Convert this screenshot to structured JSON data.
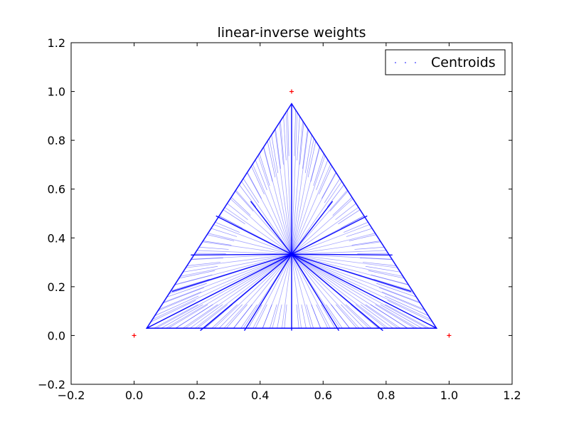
{
  "chart_data": {
    "type": "scatter",
    "title": "linear-inverse weights",
    "xlabel": "",
    "ylabel": "",
    "xlim": [
      -0.2,
      1.2
    ],
    "ylim": [
      -0.2,
      1.2
    ],
    "x_ticks": [
      -0.2,
      0.0,
      0.2,
      0.4,
      0.6,
      0.8,
      1.0,
      1.2
    ],
    "y_ticks": [
      -0.2,
      0.0,
      0.2,
      0.4,
      0.6,
      0.8,
      1.0,
      1.2
    ],
    "x_tick_labels": [
      "−0.2",
      "0.0",
      "0.2",
      "0.4",
      "0.6",
      "0.8",
      "1.0",
      "1.2"
    ],
    "y_tick_labels": [
      "−0.2",
      "0.0",
      "0.2",
      "0.4",
      "0.6",
      "0.8",
      "1.0",
      "1.2"
    ],
    "grid": false,
    "legend_position": "top-right",
    "series": [
      {
        "name": "Centroids",
        "marker": "point",
        "color": "#0000ff",
        "region_vertices": [
          [
            0.04,
            0.03
          ],
          [
            0.5,
            0.95
          ],
          [
            0.96,
            0.03
          ]
        ],
        "center": [
          0.5,
          0.333
        ]
      },
      {
        "marker": "plus",
        "color": "#ff0000",
        "x": [
          0.0,
          0.5,
          1.0
        ],
        "y": [
          0.0,
          1.0,
          0.0
        ]
      }
    ]
  }
}
